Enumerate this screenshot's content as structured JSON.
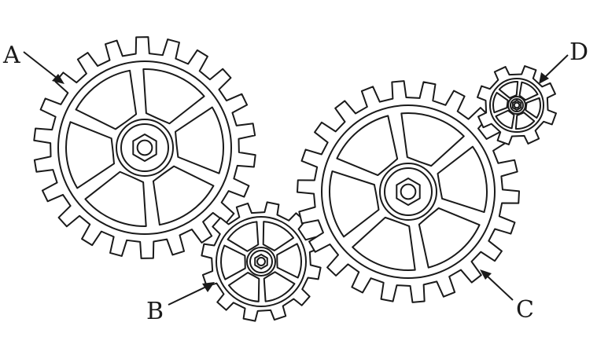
{
  "diagram": {
    "gears": [
      {
        "id": "A",
        "label": "A",
        "teeth": 22,
        "spokes": 6
      },
      {
        "id": "B",
        "label": "B",
        "teeth": 12,
        "spokes": 6
      },
      {
        "id": "C",
        "label": "C",
        "teeth": 22,
        "spokes": 6
      },
      {
        "id": "D",
        "label": "D",
        "teeth": 8,
        "spokes": 6
      }
    ],
    "colors": {
      "ink": "#1a1a1a",
      "paper": "#ffffff"
    }
  }
}
